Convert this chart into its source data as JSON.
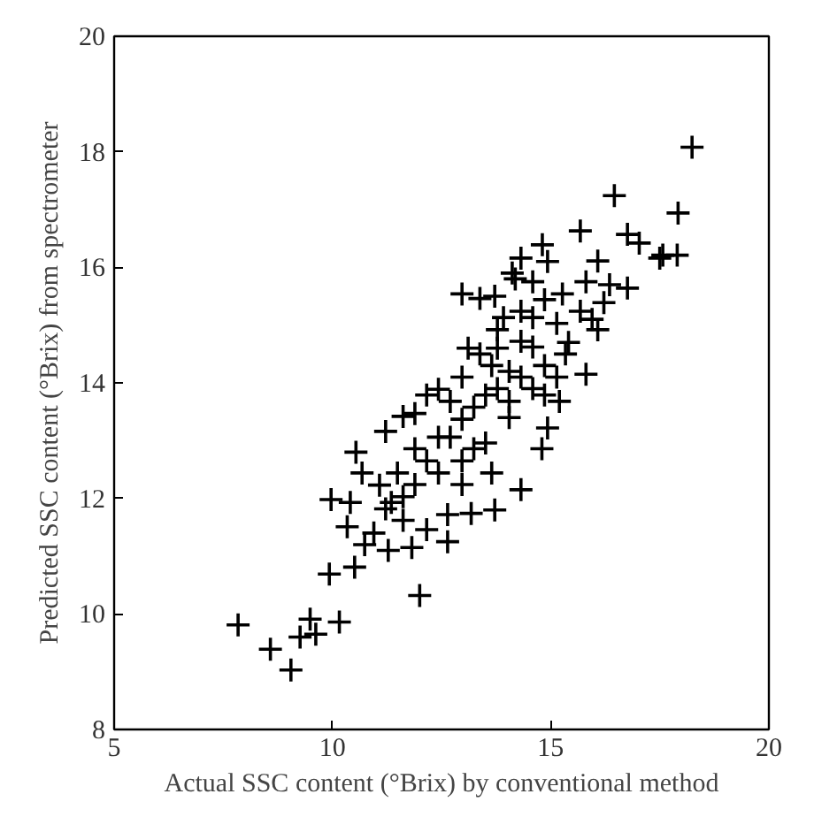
{
  "chart_data": {
    "type": "scatter",
    "xlabel": "Actual SSC content (°Brix) by conventional method",
    "ylabel": "Predicted SSC content (°Brix) from spectrometer",
    "marker": "cross",
    "grid": false,
    "xlim": [
      5,
      20
    ],
    "ylim": [
      8,
      20
    ],
    "xticks": [
      5,
      10,
      15,
      20
    ],
    "yticks": [
      8,
      10,
      12,
      14,
      16,
      18,
      20
    ],
    "series": [
      {
        "color": "#000000",
        "x": [
          18.24,
          16.46,
          17.92,
          15.68,
          14.81,
          16.08,
          16.76,
          17.03,
          17.57,
          17.9,
          17.5,
          16.76,
          14.12,
          13.38,
          14.32,
          14.93,
          15.81,
          10.54,
          9.97,
          10.41,
          10.34,
          9.93,
          10.51,
          12.0,
          7.84,
          8.58,
          9.05,
          9.26,
          9.49,
          9.62,
          10.16,
          10.74,
          11.28,
          11.82,
          12.64,
          12.64,
          13.18,
          13.72,
          14.32,
          14.8,
          14.93,
          15.2,
          15.81,
          12.16,
          11.62,
          11.22,
          10.68,
          11.08,
          11.35,
          11.62,
          12.16,
          12.97,
          13.72,
          14.19,
          15.27,
          16.22,
          16.35,
          16.08,
          15.34,
          14.59,
          14.05,
          13.51,
          12.97,
          12.43,
          11.89,
          11.49,
          11.89,
          12.43,
          12.97,
          13.51,
          14.05,
          14.59,
          15.14,
          15.68,
          12.43,
          12.97,
          13.38,
          13.11,
          13.78,
          14.32,
          14.86,
          11.89,
          12.7,
          13.78,
          14.32,
          14.86,
          15.41,
          15.95,
          14.32,
          13.65,
          13.24,
          12.7,
          12.16,
          11.62,
          11.22,
          10.95,
          12.97,
          13.65,
          13.24,
          14.05,
          14.86,
          15.14,
          14.59,
          13.92,
          13.78,
          14.59
        ],
        "values": [
          18.08,
          17.24,
          16.94,
          16.63,
          16.39,
          16.11,
          16.57,
          16.42,
          16.21,
          16.21,
          16.16,
          15.64,
          15.9,
          15.46,
          16.16,
          16.1,
          15.75,
          12.8,
          11.98,
          11.93,
          11.51,
          10.69,
          10.81,
          10.32,
          9.81,
          9.39,
          9.03,
          9.6,
          9.91,
          9.65,
          9.86,
          11.2,
          11.1,
          11.15,
          11.25,
          11.72,
          11.74,
          11.8,
          12.15,
          12.86,
          13.22,
          13.68,
          14.15,
          13.79,
          13.42,
          13.16,
          12.44,
          12.23,
          11.93,
          11.62,
          11.46,
          15.54,
          15.5,
          15.8,
          15.54,
          15.39,
          15.7,
          14.92,
          14.5,
          13.9,
          13.4,
          12.96,
          12.65,
          12.44,
          12.24,
          12.44,
          12.86,
          13.06,
          13.37,
          13.79,
          14.2,
          14.62,
          15.03,
          15.24,
          13.89,
          14.1,
          14.5,
          14.6,
          14.92,
          15.24,
          15.44,
          13.47,
          13.68,
          13.9,
          14.1,
          14.3,
          14.7,
          15.1,
          14.72,
          14.3,
          13.58,
          13.06,
          12.65,
          12.03,
          11.82,
          11.4,
          12.24,
          12.44,
          12.86,
          13.68,
          13.79,
          14.1,
          15.13,
          15.13,
          14.6,
          15.75
        ]
      }
    ]
  }
}
